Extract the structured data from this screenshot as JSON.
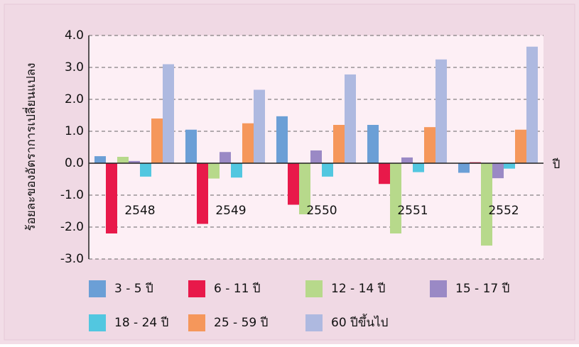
{
  "chart_data": {
    "type": "bar",
    "ylabel": "ร้อยละของอัตราการเปลี่ยนแปลง",
    "xlabel": "ปี",
    "categories": [
      "2548",
      "2549",
      "2550",
      "2551",
      "2552"
    ],
    "series": [
      {
        "name": "3 - 5 ปี",
        "color": "#6b9fd6",
        "values": [
          0.22,
          1.05,
          1.47,
          1.2,
          -0.3
        ]
      },
      {
        "name": "6 - 11 ปี",
        "color": "#e8194a",
        "values": [
          -2.2,
          -1.9,
          -1.3,
          -0.65,
          0.03
        ]
      },
      {
        "name": "12 - 14 ปี",
        "color": "#b7d98b",
        "values": [
          0.2,
          -0.48,
          -1.6,
          -2.2,
          -2.58
        ]
      },
      {
        "name": "15 - 17 ปี",
        "color": "#9a89c5",
        "values": [
          0.07,
          0.35,
          0.4,
          0.18,
          -0.47
        ]
      },
      {
        "name": "18 - 24 ปี",
        "color": "#52c7e0",
        "values": [
          -0.42,
          -0.45,
          -0.42,
          -0.28,
          -0.17
        ]
      },
      {
        "name": "25 - 59 ปี",
        "color": "#f5975b",
        "values": [
          1.4,
          1.25,
          1.2,
          1.13,
          1.05
        ]
      },
      {
        "name": "60 ปีขึ้นไป",
        "color": "#aeb9e0",
        "values": [
          3.1,
          2.3,
          2.78,
          3.25,
          3.65
        ]
      }
    ],
    "ylim": [
      -3,
      4
    ],
    "yticks": [
      {
        "value": 4,
        "label": "4.0"
      },
      {
        "value": 3,
        "label": "3.0"
      },
      {
        "value": 2,
        "label": "2.0"
      },
      {
        "value": 1,
        "label": "1.0"
      },
      {
        "value": 0,
        "label": "0.0"
      },
      {
        "value": -1,
        "label": "-1.0"
      },
      {
        "value": -2,
        "label": "-2.0"
      },
      {
        "value": -3,
        "label": "-3.0"
      }
    ],
    "grid": true
  }
}
